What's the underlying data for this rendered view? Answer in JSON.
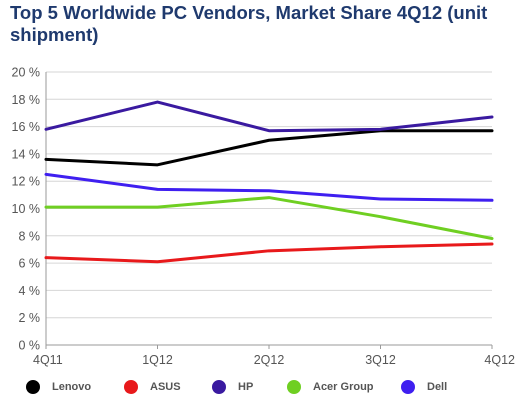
{
  "chart_data": {
    "type": "line",
    "title": "Top 5 Worldwide PC Vendors, Market Share 4Q12 (unit shipment)",
    "xlabel": "",
    "ylabel": "",
    "categories": [
      "4Q11",
      "1Q12",
      "2Q12",
      "3Q12",
      "4Q12"
    ],
    "y_ticks": [
      "0 %",
      "2 %",
      "4 %",
      "6 %",
      "8 %",
      "10 %",
      "12 %",
      "14 %",
      "16 %",
      "18 %",
      "20 %"
    ],
    "ylim": [
      0,
      20
    ],
    "grid": true,
    "legend_position": "bottom",
    "series": [
      {
        "name": "Lenovo",
        "color": "#000000",
        "values": [
          13.6,
          13.2,
          15.0,
          15.7,
          15.7
        ]
      },
      {
        "name": "ASUS",
        "color": "#e8191b",
        "values": [
          6.4,
          6.1,
          6.9,
          7.2,
          7.4
        ]
      },
      {
        "name": "HP",
        "color": "#3a1aa0",
        "values": [
          15.8,
          17.8,
          15.7,
          15.8,
          16.7
        ]
      },
      {
        "name": "Acer Group",
        "color": "#6fcf22",
        "values": [
          10.1,
          10.1,
          10.8,
          9.4,
          7.8
        ]
      },
      {
        "name": "Dell",
        "color": "#3f1ff0",
        "values": [
          12.5,
          11.4,
          11.3,
          10.7,
          10.6
        ]
      }
    ]
  }
}
